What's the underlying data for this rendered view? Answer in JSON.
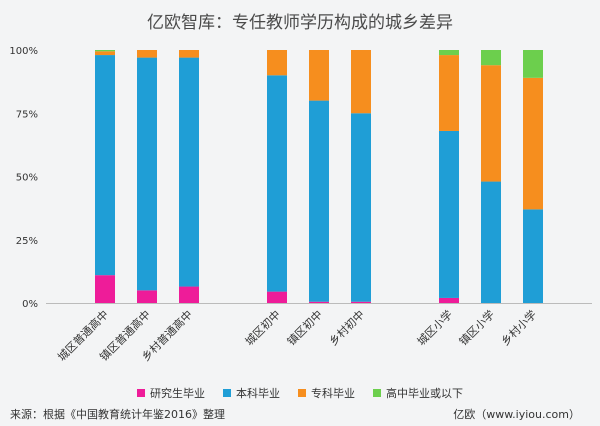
{
  "chart_data": {
    "type": "bar",
    "stacked": true,
    "percent": true,
    "title": "亿欧智库：专任教师学历构成的城乡差异",
    "categories": [
      "城区普通高中",
      "镇区普通高中",
      "乡村普通高中",
      "城区初中",
      "镇区初中",
      "乡村初中",
      "城区小学",
      "镇区小学",
      "乡村小学"
    ],
    "groups": [
      [
        0,
        1,
        2
      ],
      [
        3,
        4,
        5
      ],
      [
        6,
        7,
        8
      ]
    ],
    "yticks": [
      "0%",
      "25%",
      "50%",
      "75%",
      "100%"
    ],
    "ylim": [
      0,
      100
    ],
    "series": [
      {
        "name": "研究生毕业",
        "color": "#ee1c99",
        "values": [
          11,
          5,
          6.5,
          4.5,
          0.5,
          0.5,
          2,
          0,
          0
        ]
      },
      {
        "name": "本科毕业",
        "color": "#1f9ed6",
        "values": [
          87,
          92,
          90.5,
          85.5,
          79.5,
          74.5,
          66,
          48,
          37
        ]
      },
      {
        "name": "专科毕业",
        "color": "#f68e1e",
        "values": [
          1.5,
          3,
          3,
          10,
          20,
          25,
          30,
          46,
          52
        ]
      },
      {
        "name": "高中毕业或以下",
        "color": "#6ccf4d",
        "values": [
          0.5,
          0,
          0,
          0,
          0,
          0,
          2,
          6,
          11
        ]
      }
    ],
    "legend_position": "bottom",
    "grid": false
  },
  "footer": {
    "source": "来源：根据《中国教育统计年鉴2016》整理",
    "brand": "亿欧（www.iyiou.com）"
  }
}
